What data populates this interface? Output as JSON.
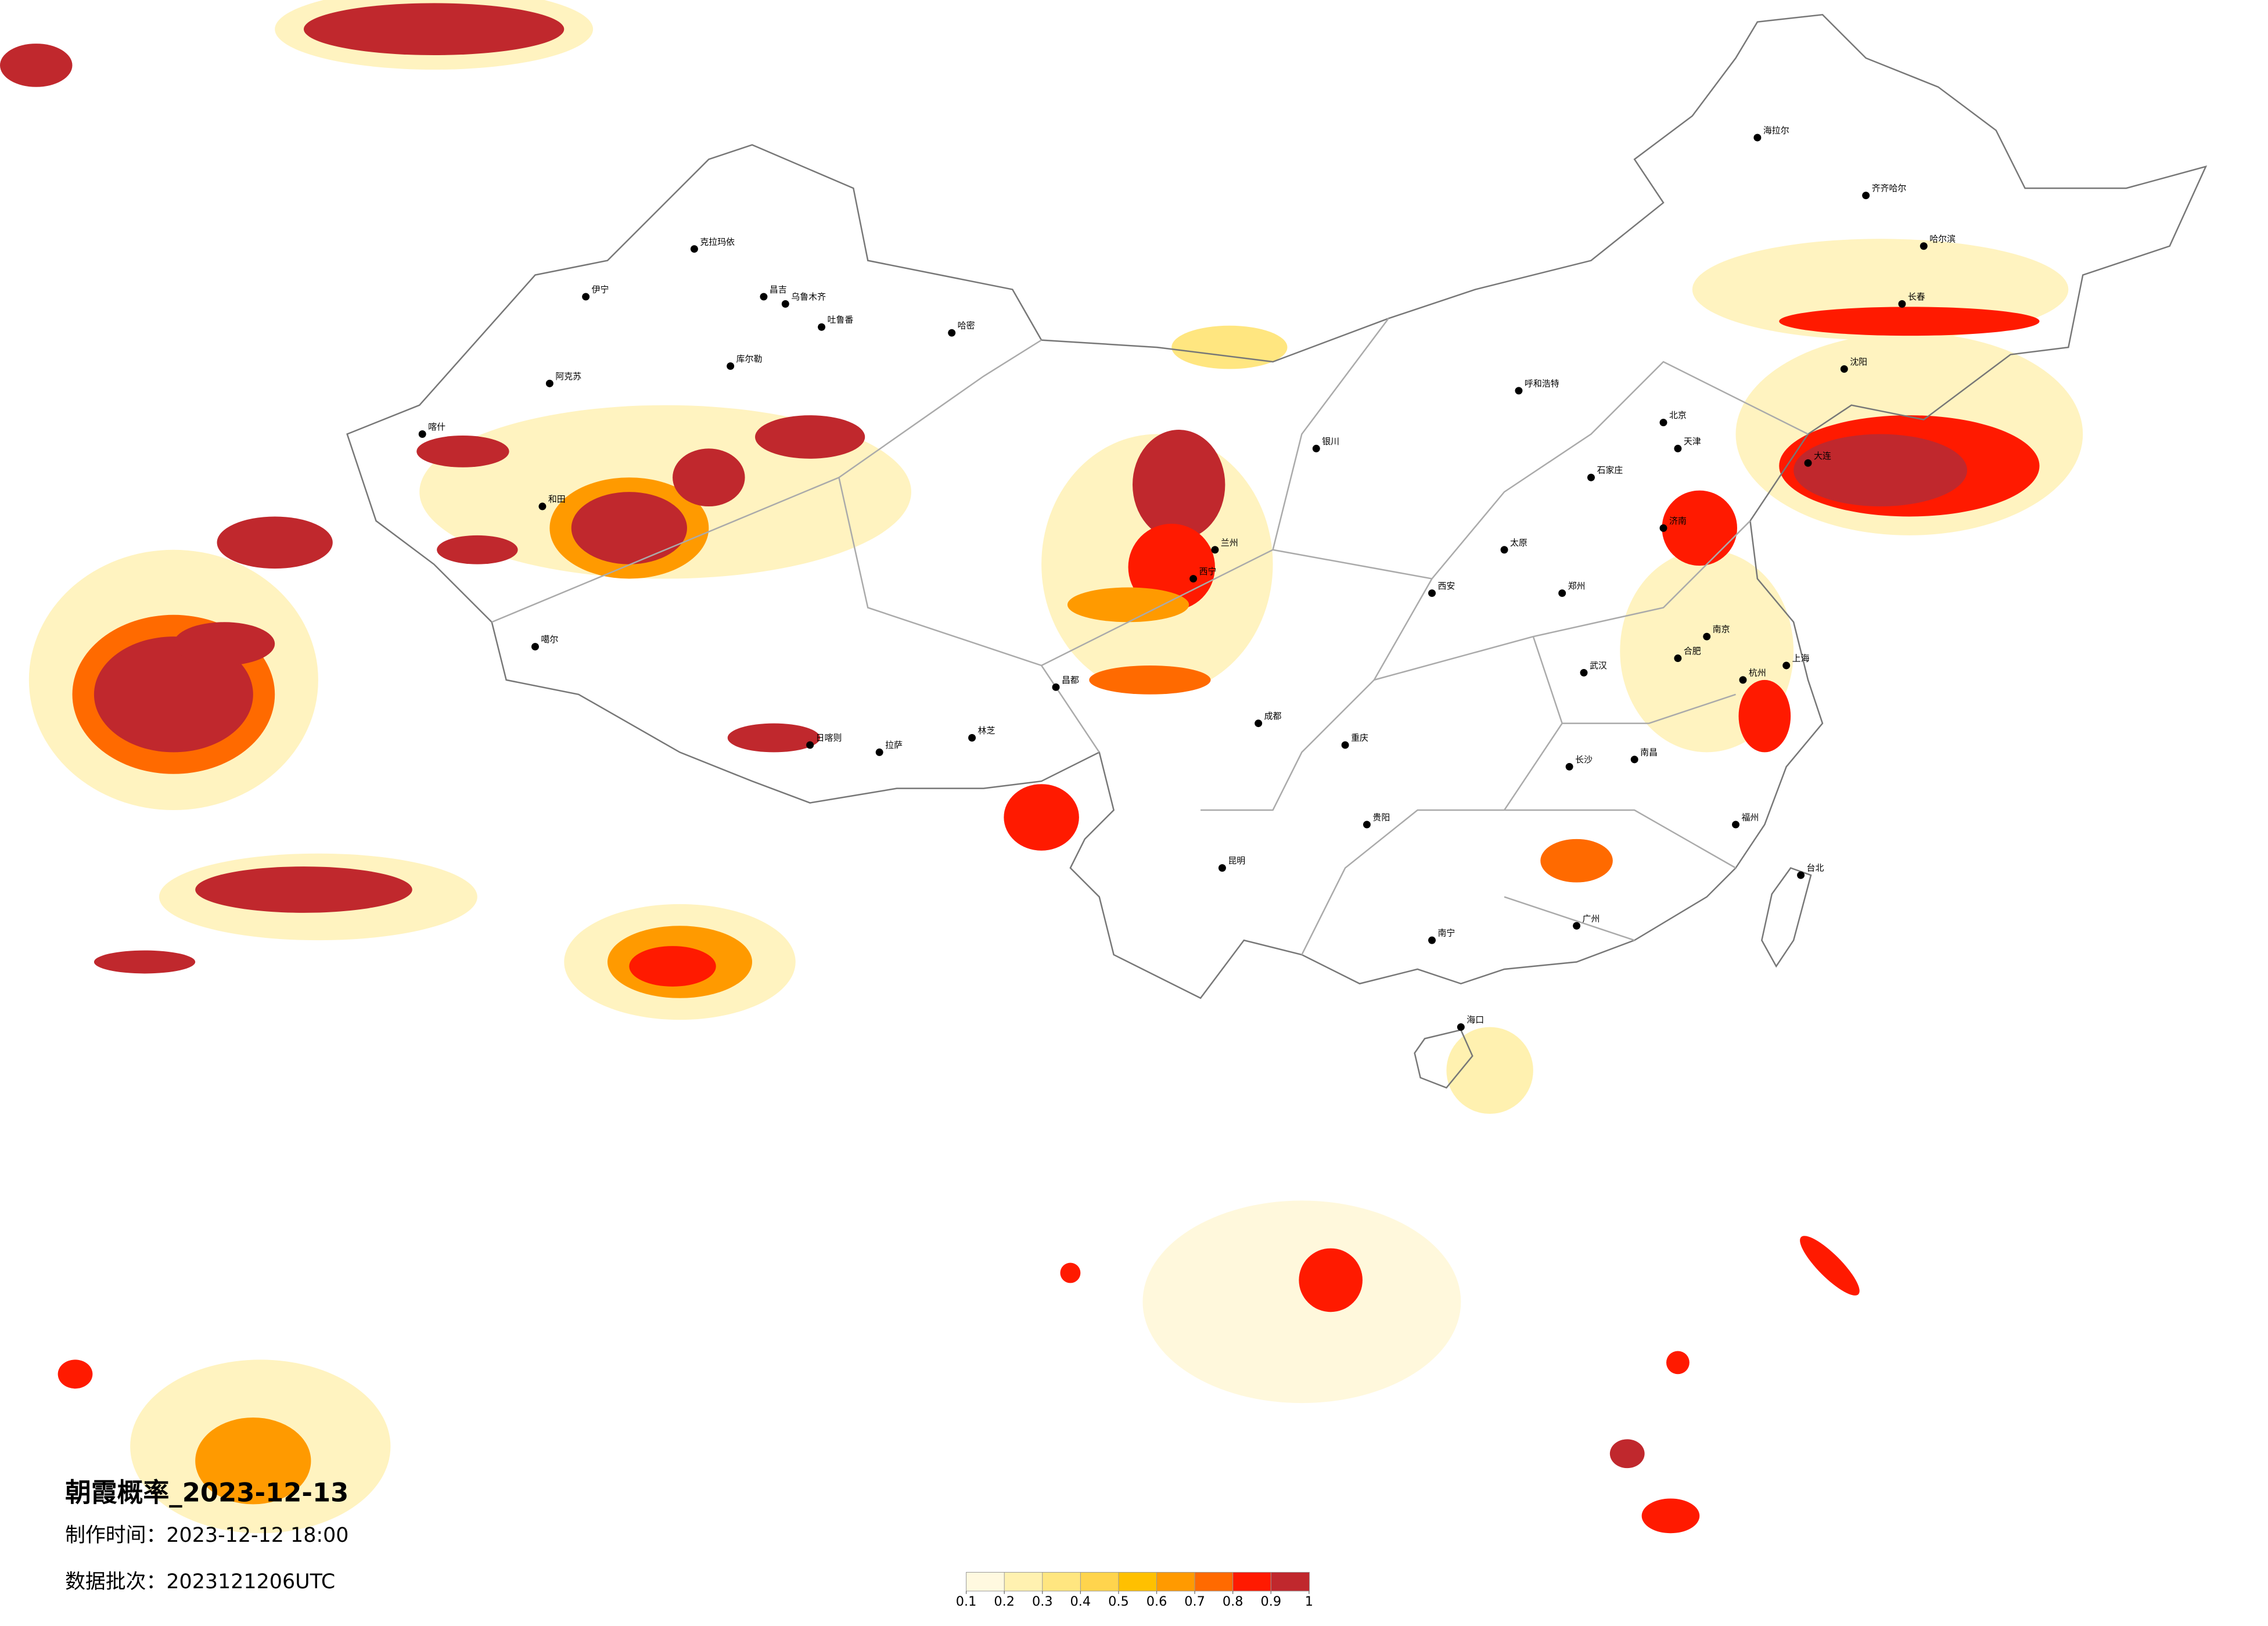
{
  "title": "朝霞概率_2023-12-13",
  "made_time": "制作时间：2023-12-12 18:00",
  "batch": "数据批次：2023121206UTC",
  "legend": {
    "colors": [
      "#fff9e0",
      "#fff1b0",
      "#ffe680",
      "#ffd44d",
      "#ffc000",
      "#ff9a00",
      "#ff6a00",
      "#ff1a00",
      "#c0282d"
    ],
    "ticks": [
      0.1,
      0.2,
      0.3,
      0.4,
      0.5,
      0.6,
      0.7,
      0.8,
      0.9,
      1
    ]
  },
  "cities": [
    "克拉玛依",
    "伊宁",
    "昌吉",
    "乌鲁木齐",
    "吐鲁番",
    "哈密",
    "库尔勒",
    "阿克苏",
    "喀什",
    "和田",
    "噶尔",
    "拉萨",
    "日喀则",
    "林芝",
    "昌都",
    "西宁",
    "兰州",
    "银川",
    "呼和浩特",
    "北京",
    "天津",
    "石家庄",
    "济南",
    "郑州",
    "西安",
    "成都",
    "重庆",
    "武汉",
    "长沙",
    "南昌",
    "杭州",
    "上海",
    "南京",
    "福州",
    "广州",
    "南宁",
    "昆明",
    "贵阳",
    "海口",
    "台北",
    "哈尔滨",
    "长春",
    "沈阳",
    "大连",
    "齐齐哈尔",
    "海拉尔",
    "太原",
    "合肥"
  ]
}
